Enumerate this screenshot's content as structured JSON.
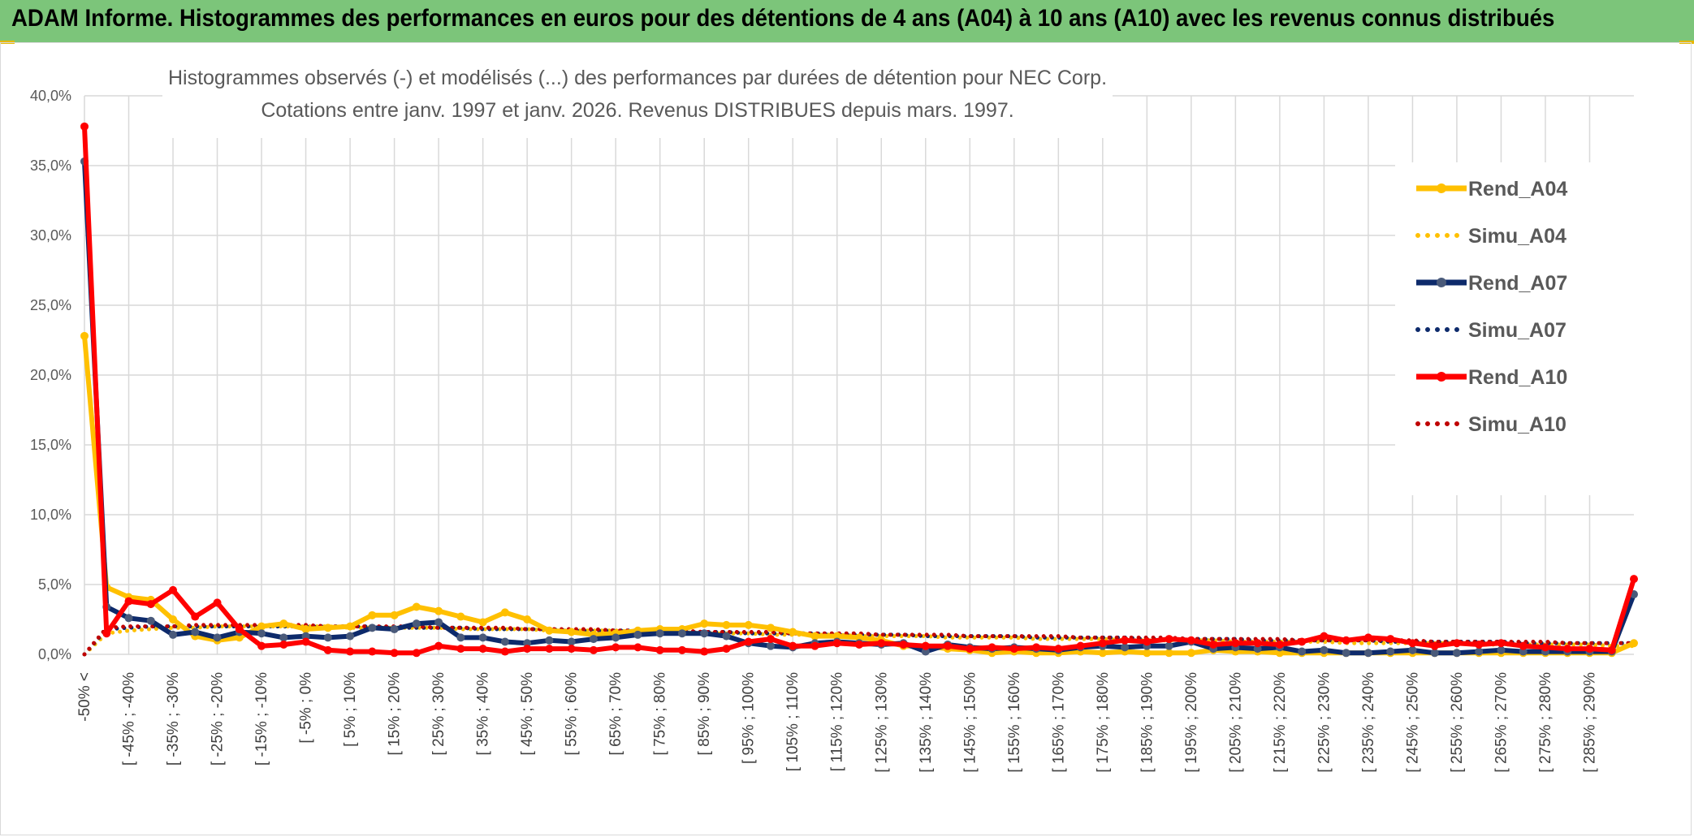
{
  "banner": {
    "title": "ADAM Informe. Histogrammes des performances en euros pour des détentions de 4 ans (A04) à 10 ans (A10) avec les revenus connus distribués"
  },
  "chart_data": {
    "type": "line",
    "title": "Histogrammes observés (-) et modélisés (...) des performances par durées de détention pour NEC Corp.",
    "subtitle": "Cotations entre janv. 1997 et janv. 2026. Revenus DISTRIBUES depuis mars. 1997.",
    "xlabel": "",
    "ylabel": "",
    "ylim": [
      0,
      40
    ],
    "yticks": [
      "0,0%",
      "5,0%",
      "10,0%",
      "15,0%",
      "20,0%",
      "25,0%",
      "30,0%",
      "35,0%",
      "40,0%"
    ],
    "grid": true,
    "legend_position": "right",
    "xticklabels": [
      "-50% <",
      "[ -45% ; -40%",
      "[ -35% ; -30%",
      "[ -25% ; -20%",
      "[ -15% ; -10%",
      "[ -5% ; 0%",
      "[ 5% ; 10%",
      "[ 15% ; 20%",
      "[ 25% ; 30%",
      "[ 35% ; 40%",
      "[ 45% ; 50%",
      "[ 55% ; 60%",
      "[ 65% ; 70%",
      "[ 75% ; 80%",
      "[ 85% ; 90%",
      "[ 95% ; 100%",
      "[ 105% ; 110%",
      "[ 115% ; 120%",
      "[ 125% ; 130%",
      "[ 135% ; 140%",
      "[ 145% ; 150%",
      "[ 155% ; 160%",
      "[ 165% ; 170%",
      "[ 175% ; 180%",
      "[ 185% ; 190%",
      "[ 195% ; 200%",
      "[ 205% ; 210%",
      "[ 215% ; 220%",
      "[ 225% ; 230%",
      "[ 235% ; 240%",
      "[ 245% ; 250%",
      "[ 255% ; 260%",
      "[ 265% ; 270%",
      "[ 275% ; 280%",
      "[ 285% ; 290%"
    ],
    "series": [
      {
        "name": "Rend_A04",
        "style": "solid",
        "color": "#ffc000",
        "values": [
          22.8,
          4.8,
          4.1,
          3.9,
          2.5,
          1.3,
          1.0,
          1.2,
          2.0,
          2.2,
          1.8,
          1.9,
          2.0,
          2.8,
          2.8,
          3.4,
          3.1,
          2.7,
          2.3,
          3.0,
          2.5,
          1.7,
          1.6,
          1.4,
          1.5,
          1.7,
          1.8,
          1.8,
          2.2,
          2.1,
          2.1,
          1.9,
          1.6,
          1.3,
          1.3,
          1.2,
          1.0,
          0.6,
          0.6,
          0.4,
          0.3,
          0.1,
          0.2,
          0.1,
          0.1,
          0.2,
          0.1,
          0.2,
          0.1,
          0.1,
          0.1,
          0.3,
          0.2,
          0.2,
          0.1,
          0.1,
          0.1,
          0.1,
          0.1,
          0.1,
          0.1,
          0.1,
          0.1,
          0.1,
          0.1,
          0.1,
          0.1,
          0.1,
          0.1,
          0.1,
          0.8
        ]
      },
      {
        "name": "Simu_A04",
        "style": "dotted",
        "color": "#ffc000",
        "values": [
          0.0,
          1.5,
          1.7,
          1.8,
          1.9,
          1.9,
          2.0,
          2.0,
          2.0,
          2.0,
          2.0,
          2.0,
          1.9,
          1.9,
          1.9,
          1.9,
          1.9,
          1.8,
          1.8,
          1.8,
          1.8,
          1.7,
          1.7,
          1.7,
          1.7,
          1.6,
          1.6,
          1.6,
          1.5,
          1.5,
          1.5,
          1.4,
          1.4,
          1.4,
          1.4,
          1.3,
          1.3,
          1.3,
          1.3,
          1.2,
          1.2,
          1.2,
          1.2,
          1.1,
          1.1,
          1.1,
          1.1,
          1.0,
          1.0,
          1.0,
          1.0,
          1.0,
          0.9,
          0.9,
          0.9,
          0.9,
          0.9,
          0.8,
          0.8,
          0.8,
          0.8,
          0.8,
          0.8,
          0.7,
          0.7,
          0.7,
          0.7,
          0.7,
          0.7,
          0.6,
          0.6
        ]
      },
      {
        "name": "Rend_A07",
        "style": "solid",
        "color": "#0d2a6b",
        "values": [
          35.3,
          3.4,
          2.6,
          2.4,
          1.4,
          1.6,
          1.2,
          1.6,
          1.5,
          1.2,
          1.3,
          1.2,
          1.3,
          1.9,
          1.8,
          2.2,
          2.3,
          1.2,
          1.2,
          0.9,
          0.8,
          1.0,
          0.9,
          1.1,
          1.2,
          1.4,
          1.5,
          1.5,
          1.5,
          1.3,
          0.8,
          0.6,
          0.5,
          0.8,
          0.9,
          0.8,
          0.7,
          0.8,
          0.2,
          0.7,
          0.5,
          0.4,
          0.5,
          0.4,
          0.3,
          0.5,
          0.6,
          0.5,
          0.6,
          0.6,
          0.9,
          0.4,
          0.5,
          0.4,
          0.5,
          0.2,
          0.3,
          0.1,
          0.1,
          0.2,
          0.3,
          0.1,
          0.1,
          0.2,
          0.3,
          0.2,
          0.2,
          0.2,
          0.2,
          0.2,
          4.3
        ]
      },
      {
        "name": "Simu_A07",
        "style": "dotted",
        "color": "#0d2a6b",
        "values": [
          0.0,
          1.8,
          1.9,
          2.0,
          2.0,
          2.0,
          2.0,
          2.0,
          2.0,
          2.0,
          2.0,
          2.0,
          2.0,
          2.0,
          1.9,
          1.9,
          1.9,
          1.9,
          1.8,
          1.8,
          1.8,
          1.8,
          1.7,
          1.7,
          1.7,
          1.7,
          1.6,
          1.6,
          1.6,
          1.6,
          1.5,
          1.5,
          1.5,
          1.5,
          1.4,
          1.4,
          1.4,
          1.4,
          1.3,
          1.3,
          1.3,
          1.3,
          1.3,
          1.2,
          1.2,
          1.2,
          1.2,
          1.2,
          1.1,
          1.1,
          1.1,
          1.1,
          1.1,
          1.0,
          1.0,
          1.0,
          1.0,
          1.0,
          1.0,
          0.9,
          0.9,
          0.9,
          0.9,
          0.9,
          0.9,
          0.8,
          0.8,
          0.8,
          0.8,
          0.8,
          0.8
        ]
      },
      {
        "name": "Rend_A10",
        "style": "solid",
        "color": "#ff0000",
        "values": [
          37.8,
          1.5,
          3.8,
          3.6,
          4.6,
          2.7,
          3.7,
          1.8,
          0.6,
          0.7,
          0.9,
          0.3,
          0.2,
          0.2,
          0.1,
          0.1,
          0.6,
          0.4,
          0.4,
          0.2,
          0.4,
          0.4,
          0.4,
          0.3,
          0.5,
          0.5,
          0.3,
          0.3,
          0.2,
          0.4,
          0.9,
          1.1,
          0.6,
          0.6,
          0.8,
          0.7,
          0.8,
          0.7,
          0.6,
          0.6,
          0.4,
          0.5,
          0.4,
          0.5,
          0.4,
          0.6,
          0.8,
          1.0,
          0.9,
          1.1,
          1.0,
          0.7,
          0.8,
          0.8,
          0.7,
          0.9,
          1.3,
          1.0,
          1.2,
          1.1,
          0.8,
          0.6,
          0.8,
          0.7,
          0.8,
          0.6,
          0.5,
          0.4,
          0.4,
          0.3,
          5.4
        ]
      },
      {
        "name": "Simu_A10",
        "style": "dotted",
        "color": "#c00000",
        "values": [
          0.0,
          1.9,
          2.0,
          2.0,
          2.0,
          2.1,
          2.1,
          2.1,
          2.1,
          2.1,
          2.1,
          2.0,
          2.0,
          2.0,
          2.0,
          2.0,
          1.9,
          1.9,
          1.9,
          1.9,
          1.8,
          1.8,
          1.8,
          1.8,
          1.7,
          1.7,
          1.7,
          1.7,
          1.6,
          1.6,
          1.6,
          1.6,
          1.5,
          1.5,
          1.5,
          1.5,
          1.4,
          1.4,
          1.4,
          1.4,
          1.3,
          1.3,
          1.3,
          1.3,
          1.3,
          1.2,
          1.2,
          1.2,
          1.2,
          1.2,
          1.1,
          1.1,
          1.1,
          1.1,
          1.1,
          1.0,
          1.0,
          1.0,
          1.0,
          1.0,
          1.0,
          0.9,
          0.9,
          0.9,
          0.9,
          0.9,
          0.9,
          0.8,
          0.8,
          0.8,
          0.8
        ]
      }
    ]
  }
}
